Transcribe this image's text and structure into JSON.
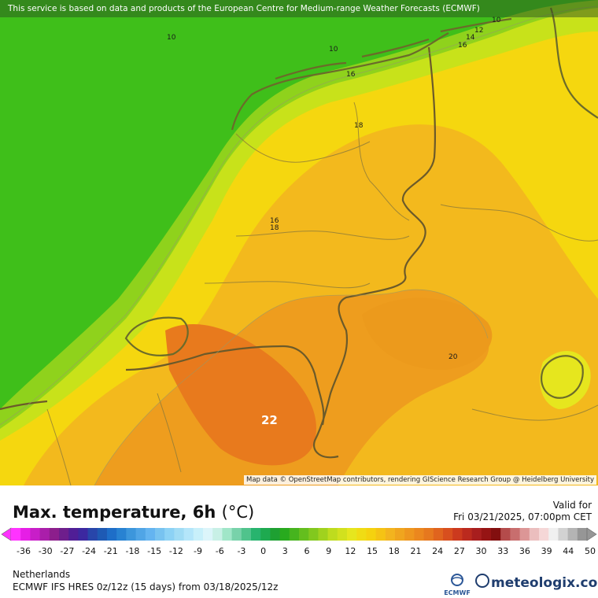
{
  "map": {
    "banner": "This service is based on data and products of the European Centre for Medium-range Weather Forecasts (ECMWF)",
    "attribution": "Map data © OpenStreetMap contributors, rendering GIScience Research Group @ Heidelberg University",
    "contour_labels": [
      "10",
      "10",
      "10",
      "12",
      "14",
      "16",
      "16",
      "18",
      "16",
      "18",
      "20",
      "22"
    ],
    "colors": {
      "sea_green": "#3fbf1a",
      "coast_yellowgreen": "#c8e21a",
      "land_yellow": "#f5d70f",
      "land_lightorange": "#f3b91d",
      "land_orange": "#ee9d1e",
      "hot_orange": "#e87a1d",
      "border": "#6b6b2a"
    }
  },
  "legend": {
    "title": "Max. temperature, 6h",
    "unit": "(°C)",
    "valid_label": "Valid for",
    "valid_time": "Fri 03/21/2025, 07:00pm CET",
    "scale_ticks": [
      "-36",
      "-30",
      "-27",
      "-24",
      "-21",
      "-18",
      "-15",
      "-12",
      "-9",
      "-6",
      "-3",
      "0",
      "3",
      "6",
      "9",
      "12",
      "15",
      "18",
      "21",
      "24",
      "27",
      "30",
      "33",
      "36",
      "39",
      "44",
      "50"
    ],
    "scale_colors": [
      "#ff33ff",
      "#e61ee6",
      "#c81ec8",
      "#aa1eaa",
      "#8c1e8c",
      "#6e1e8c",
      "#501e96",
      "#3c28a0",
      "#2846aa",
      "#1e5ab4",
      "#1e6ec8",
      "#2882d2",
      "#3c96dc",
      "#50a5e6",
      "#64b4f0",
      "#78c3f0",
      "#8cd2f5",
      "#a0dcf5",
      "#b4e6fa",
      "#c8f0fa",
      "#dcf5fa",
      "#c8f0e6",
      "#a0e6c8",
      "#78d2aa",
      "#50c38c",
      "#28b46e",
      "#1eaa50",
      "#1ea032",
      "#28aa1e",
      "#46b41e",
      "#64be1e",
      "#82c81e",
      "#a0d21e",
      "#bedc1e",
      "#d2e11e",
      "#e6e61e",
      "#f0dc14",
      "#f5d20f",
      "#f5c314",
      "#f3b41e",
      "#f0a51e",
      "#ee961e",
      "#eb871e",
      "#e6781e",
      "#e0641e",
      "#d84f1e",
      "#cc3a1e",
      "#bb2a1e",
      "#a81e1e",
      "#961414",
      "#820f0f",
      "#b44b4b",
      "#c86e6e",
      "#dc9696",
      "#ebbebe",
      "#f5d7d7",
      "#f0f0f0",
      "#d2d2d2",
      "#b4b4b4",
      "#969696"
    ],
    "region": "Netherlands",
    "model": "ECMWF IFS HRES 0z/12z (15 days) from  03/18/2025/12z",
    "brand": "meteologix.com",
    "ecmwf_logo_text": "ECMWF"
  }
}
